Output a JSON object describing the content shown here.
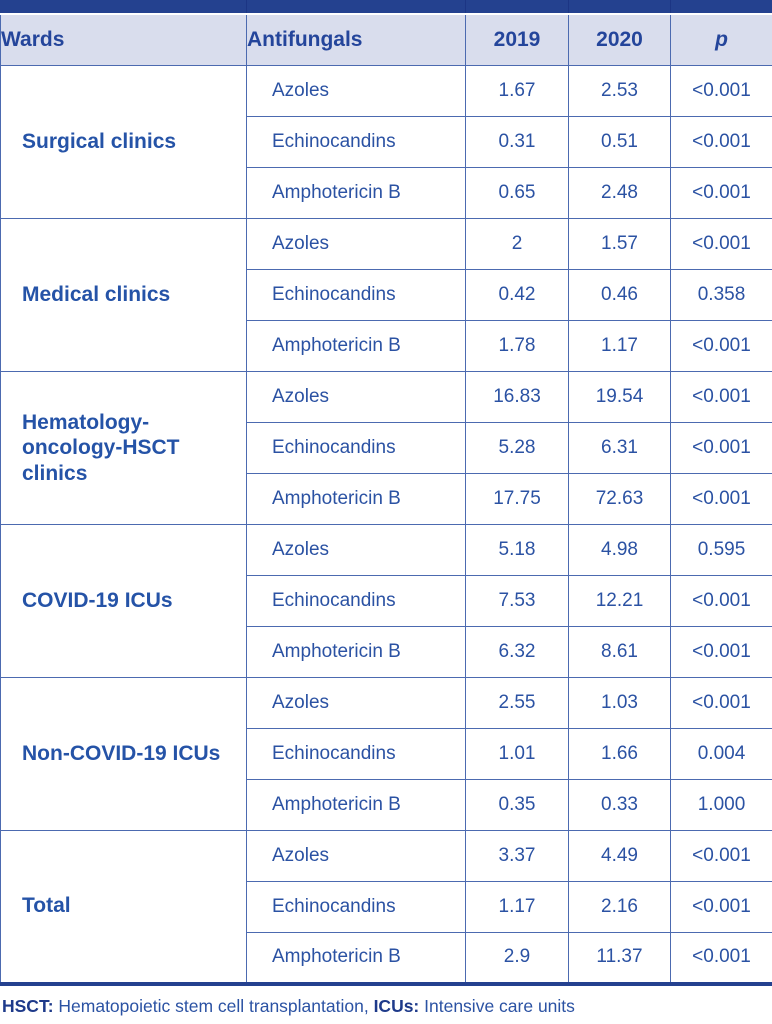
{
  "colors": {
    "top_bar_navy": "#24418f",
    "header_bg": "#d9dded",
    "border_blue": "#4c6ab0",
    "text_blue": "#2b52a3",
    "ward_text_blue": "#2553a7",
    "bottom_border_navy": "#24418f"
  },
  "table": {
    "columns": [
      "Wards",
      "Antifungals",
      "2019",
      "2020",
      "p"
    ],
    "groups": [
      {
        "ward": "Surgical clinics",
        "rows": [
          {
            "antifungal": "Azoles",
            "y2019": "1.67",
            "y2020": "2.53",
            "p": "<0.001"
          },
          {
            "antifungal": "Echinocandins",
            "y2019": "0.31",
            "y2020": "0.51",
            "p": "<0.001"
          },
          {
            "antifungal": "Amphotericin B",
            "y2019": "0.65",
            "y2020": "2.48",
            "p": "<0.001"
          }
        ]
      },
      {
        "ward": "Medical clinics",
        "rows": [
          {
            "antifungal": "Azoles",
            "y2019": "2",
            "y2020": "1.57",
            "p": "<0.001"
          },
          {
            "antifungal": "Echinocandins",
            "y2019": "0.42",
            "y2020": "0.46",
            "p": "0.358"
          },
          {
            "antifungal": "Amphotericin B",
            "y2019": "1.78",
            "y2020": "1.17",
            "p": "<0.001"
          }
        ]
      },
      {
        "ward": "Hematology-oncology-HSCT clinics",
        "rows": [
          {
            "antifungal": "Azoles",
            "y2019": "16.83",
            "y2020": "19.54",
            "p": "<0.001"
          },
          {
            "antifungal": "Echinocandins",
            "y2019": "5.28",
            "y2020": "6.31",
            "p": "<0.001"
          },
          {
            "antifungal": "Amphotericin B",
            "y2019": "17.75",
            "y2020": "72.63",
            "p": "<0.001"
          }
        ]
      },
      {
        "ward": "COVID-19 ICUs",
        "rows": [
          {
            "antifungal": "Azoles",
            "y2019": "5.18",
            "y2020": "4.98",
            "p": "0.595"
          },
          {
            "antifungal": "Echinocandins",
            "y2019": "7.53",
            "y2020": "12.21",
            "p": "<0.001"
          },
          {
            "antifungal": "Amphotericin B",
            "y2019": "6.32",
            "y2020": "8.61",
            "p": "<0.001"
          }
        ]
      },
      {
        "ward": "Non-COVID-19 ICUs",
        "rows": [
          {
            "antifungal": "Azoles",
            "y2019": "2.55",
            "y2020": "1.03",
            "p": "<0.001"
          },
          {
            "antifungal": "Echinocandins",
            "y2019": "1.01",
            "y2020": "1.66",
            "p": "0.004"
          },
          {
            "antifungal": "Amphotericin B",
            "y2019": "0.35",
            "y2020": "0.33",
            "p": "1.000"
          }
        ]
      },
      {
        "ward": "Total",
        "rows": [
          {
            "antifungal": "Azoles",
            "y2019": "3.37",
            "y2020": "4.49",
            "p": "<0.001"
          },
          {
            "antifungal": "Echinocandins",
            "y2019": "1.17",
            "y2020": "2.16",
            "p": "<0.001"
          },
          {
            "antifungal": "Amphotericin B",
            "y2019": "2.9",
            "y2020": "11.37",
            "p": "<0.001"
          }
        ]
      }
    ]
  },
  "footnote": {
    "parts": [
      {
        "text": "HSCT:",
        "bold": true
      },
      {
        "text": " Hematopoietic stem cell transplantation, ",
        "bold": false
      },
      {
        "text": "ICUs:",
        "bold": true
      },
      {
        "text": " Intensive care units",
        "bold": false
      }
    ]
  }
}
